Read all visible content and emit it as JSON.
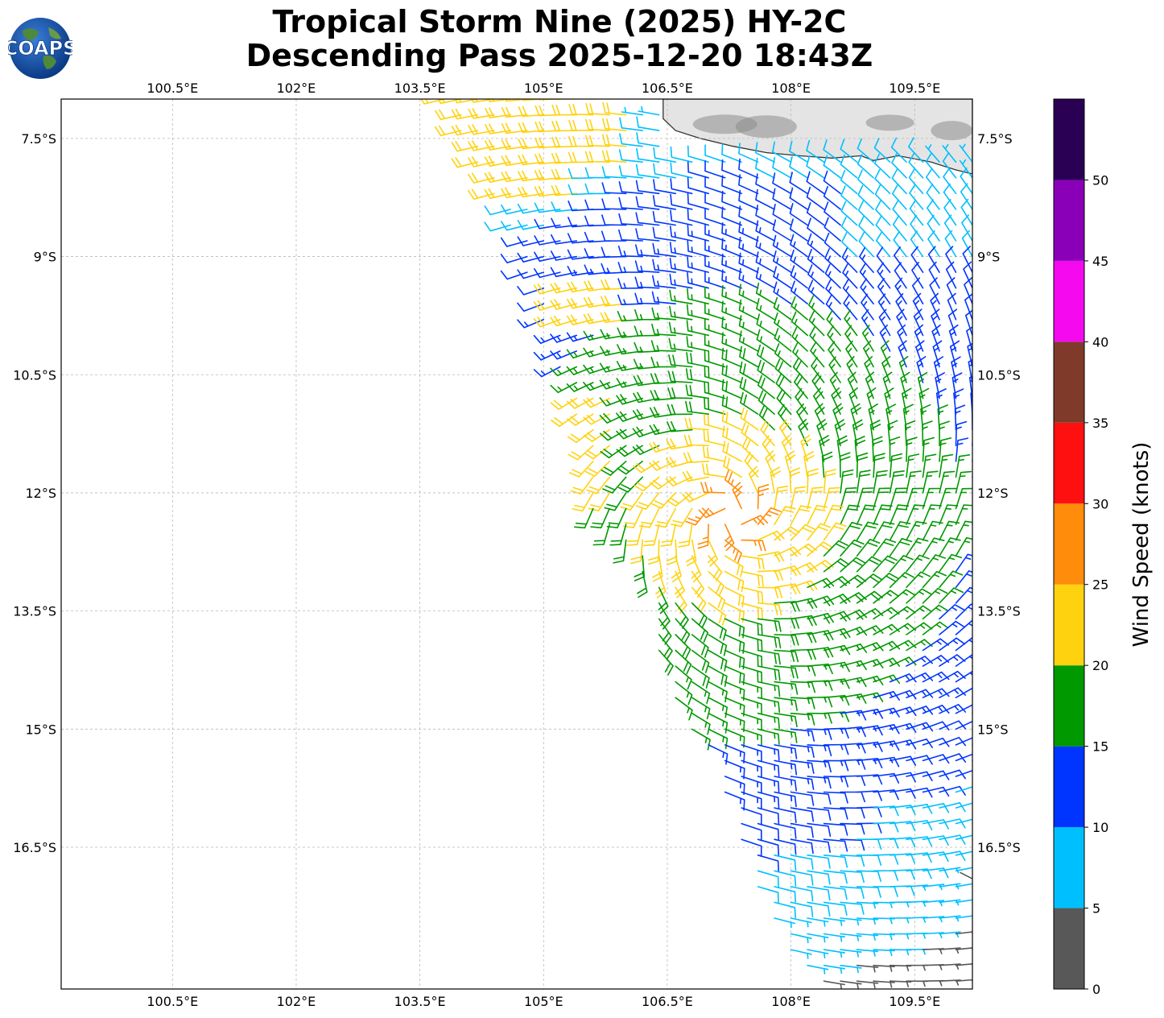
{
  "title_line1": "Tropical Storm Nine (2025) HY-2C",
  "title_line2": "Descending Pass 2025-12-20 18:43Z",
  "logo_text": "COAPS",
  "map": {
    "lon_ticks": [
      "100.5°E",
      "102°E",
      "103.5°E",
      "105°E",
      "106.5°E",
      "108°E",
      "109.5°E"
    ],
    "lat_ticks": [
      "7.5°S",
      "9°S",
      "10.5°S",
      "12°S",
      "13.5°S",
      "15°S",
      "16.5°S"
    ],
    "lon_values": [
      100.5,
      102,
      103.5,
      105,
      106.5,
      108,
      109.5
    ],
    "lat_values": [
      -7.5,
      -9,
      -10.5,
      -12,
      -13.5,
      -15,
      -16.5
    ],
    "lon_range": [
      99.15,
      110.2
    ],
    "lat_range": [
      -18.3,
      -7.0
    ],
    "grid": true
  },
  "colorbar": {
    "label": "Wind Speed (knots)",
    "ticks": [
      "0",
      "5",
      "10",
      "15",
      "20",
      "25",
      "30",
      "35",
      "40",
      "45",
      "50"
    ],
    "bins": [
      {
        "min": 0,
        "max": 5,
        "color": "#585858"
      },
      {
        "min": 5,
        "max": 10,
        "color": "#00bfff"
      },
      {
        "min": 10,
        "max": 15,
        "color": "#0035ff"
      },
      {
        "min": 15,
        "max": 20,
        "color": "#009900"
      },
      {
        "min": 20,
        "max": 25,
        "color": "#ffd20f"
      },
      {
        "min": 25,
        "max": 30,
        "color": "#ff8c0a"
      },
      {
        "min": 30,
        "max": 35,
        "color": "#ff1010"
      },
      {
        "min": 35,
        "max": 40,
        "color": "#803a2a"
      },
      {
        "min": 40,
        "max": 45,
        "color": "#f50af0"
      },
      {
        "min": 45,
        "max": 50,
        "color": "#8a00b8"
      },
      {
        "min": 50,
        "max": 55,
        "color": "#2a0055"
      }
    ]
  },
  "storm_center": {
    "lon": 107.3,
    "lat": -12.3
  },
  "swath_edges": {
    "west": [
      [
        103.7,
        -7.0
      ],
      [
        104.3,
        -8.0
      ],
      [
        104.9,
        -9.5
      ],
      [
        105.2,
        -10.5
      ],
      [
        105.5,
        -11.5
      ],
      [
        105.6,
        -12.2
      ],
      [
        106.2,
        -13.0
      ],
      [
        106.3,
        -13.8
      ],
      [
        106.5,
        -14.5
      ],
      [
        107.1,
        -15.5
      ],
      [
        107.4,
        -16.5
      ],
      [
        107.8,
        -17.5
      ],
      [
        108.3,
        -18.3
      ]
    ],
    "east": [
      [
        110.2,
        -7.0
      ],
      [
        110.2,
        -18.3
      ]
    ]
  }
}
